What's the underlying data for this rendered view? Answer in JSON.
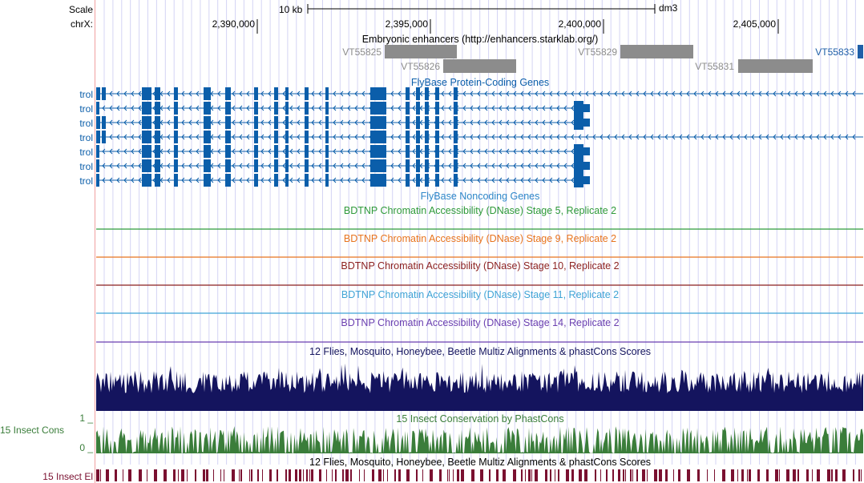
{
  "ruler": {
    "scale_label": "Scale",
    "chrom_label": "chrX:",
    "scale_bar_text": "10 kb",
    "assembly": "dm3",
    "positions": [
      "2,390,000",
      "2,395,000",
      "2,400,000",
      "2,405,000"
    ]
  },
  "tracks": {
    "enhancers": {
      "title": "Embryonic enhancers (http://enhancers.starklab.org/)",
      "items": [
        {
          "name": "VT55825",
          "color": "#8c8c8c"
        },
        {
          "name": "VT55826",
          "color": "#8c8c8c"
        },
        {
          "name": "VT55829",
          "color": "#8c8c8c"
        },
        {
          "name": "VT55831",
          "color": "#8c8c8c"
        },
        {
          "name": "VT55833",
          "color": "#1f5fa8"
        }
      ]
    },
    "genes": {
      "title": "FlyBase Protein-Coding Genes",
      "color": "#0b5eaa",
      "transcripts": [
        "trol",
        "trol",
        "trol",
        "trol",
        "trol",
        "trol",
        "trol"
      ]
    },
    "noncoding": {
      "title": "FlyBase Noncoding Genes",
      "color": "#2d86c8"
    },
    "dnase": [
      {
        "title": "BDTNP Chromatin Accessibility (DNase) Stage 5, Replicate 2",
        "color": "#2f9a3a"
      },
      {
        "title": "BDTNP Chromatin Accessibility (DNase) Stage 9, Replicate 2",
        "color": "#e8741e"
      },
      {
        "title": "BDTNP Chromatin Accessibility (DNase) Stage 10, Replicate 2",
        "color": "#8b1f1f"
      },
      {
        "title": "BDTNP Chromatin Accessibility (DNase) Stage 11, Replicate 2",
        "color": "#3fa3d6"
      },
      {
        "title": "BDTNP Chromatin Accessibility (DNase) Stage 14, Replicate 2",
        "color": "#6a3fb0"
      }
    ],
    "multiz": {
      "title": "12 Flies, Mosquito, Honeybee, Beetle Multiz Alignments & phastCons Scores",
      "color": "#14145e"
    },
    "phastcons": {
      "title": "15 Insect Conservation by PhastCons",
      "side_label": "15 Insect Cons",
      "max_label": "1 _",
      "min_label": "0 _",
      "color": "#3a7d3a"
    },
    "elements": {
      "title": "12 Flies, Mosquito, Honeybee, Beetle Multiz Alignments & phastCons Scores",
      "side_label": "15 Insect El",
      "color": "#7a1030"
    }
  }
}
